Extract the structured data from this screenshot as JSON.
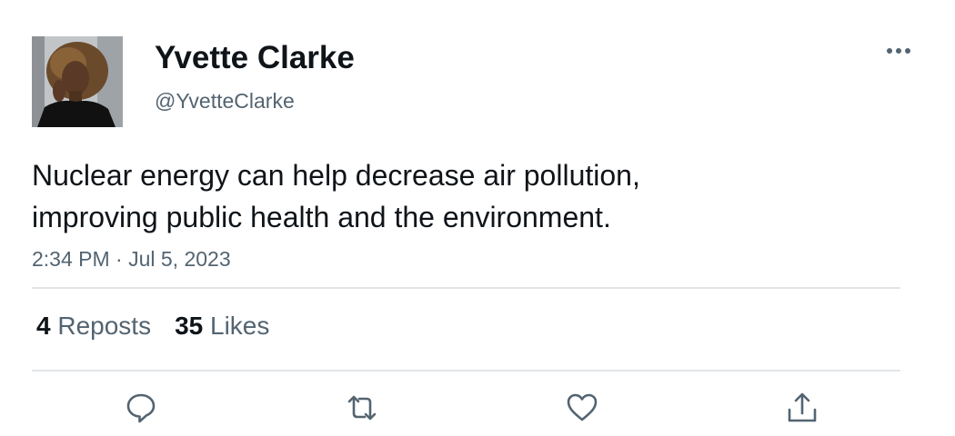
{
  "author": {
    "display_name": "Yvette Clarke",
    "handle": "@YvetteClarke"
  },
  "tweet": {
    "text": "Nuclear energy can help decrease air pollution,\nimproving public health and the environment.",
    "timestamp": "2:34 PM · Jul 5, 2023"
  },
  "stats": {
    "reposts_count": "4",
    "reposts_label": "Reposts",
    "likes_count": "35",
    "likes_label": "Likes"
  },
  "actions": [
    "reply-icon",
    "repost-icon",
    "like-icon",
    "share-icon"
  ],
  "colors": {
    "text": "#0f1419",
    "secondary": "#536471",
    "divider": "#e1e5e8"
  }
}
